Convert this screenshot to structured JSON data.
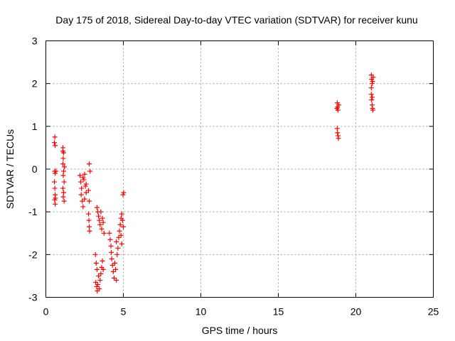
{
  "chart_data": {
    "type": "scatter",
    "title": "Day 175 of 2018, Sidereal Day-to-day VTEC variation (SDTVAR) for receiver kunu",
    "xlabel": "GPS time / hours",
    "ylabel": "SDTVAR / TECUs",
    "xlim": [
      0,
      25
    ],
    "ylim": [
      -3,
      3
    ],
    "xticks": [
      "0",
      "5",
      "10",
      "15",
      "20",
      "25"
    ],
    "yticks": [
      "-3",
      "-2",
      "-1",
      "0",
      "1",
      "2",
      "3"
    ],
    "grid": true,
    "marker": "+",
    "color": "#ff0000",
    "series": [
      {
        "name": "SDTVAR",
        "points": [
          [
            0.55,
            0.62
          ],
          [
            0.58,
            0.75
          ],
          [
            0.6,
            0.55
          ],
          [
            0.57,
            -0.05
          ],
          [
            0.6,
            -0.1
          ],
          [
            0.55,
            -0.3
          ],
          [
            0.58,
            -0.45
          ],
          [
            0.6,
            -0.6
          ],
          [
            0.57,
            -0.72
          ],
          [
            0.6,
            -0.82
          ],
          [
            0.62,
            -0.68
          ],
          [
            0.65,
            -0.05
          ],
          [
            1.1,
            0.5
          ],
          [
            1.15,
            0.38
          ],
          [
            1.12,
            0.25
          ],
          [
            1.1,
            0.12
          ],
          [
            1.15,
            -0.05
          ],
          [
            1.12,
            -0.15
          ],
          [
            1.18,
            -0.3
          ],
          [
            1.1,
            -0.45
          ],
          [
            1.15,
            -0.55
          ],
          [
            1.12,
            -0.65
          ],
          [
            1.18,
            -0.75
          ],
          [
            1.2,
            0.05
          ],
          [
            1.1,
            0.42
          ],
          [
            2.2,
            -0.15
          ],
          [
            2.25,
            -0.3
          ],
          [
            2.3,
            -0.45
          ],
          [
            2.28,
            -0.6
          ],
          [
            2.35,
            -0.75
          ],
          [
            2.4,
            -0.88
          ],
          [
            2.45,
            -0.25
          ],
          [
            2.5,
            -0.12
          ],
          [
            2.55,
            -0.4
          ],
          [
            2.6,
            -0.55
          ],
          [
            2.5,
            -0.7
          ],
          [
            2.4,
            -0.2
          ],
          [
            2.6,
            -0.35
          ],
          [
            2.75,
            -0.5
          ],
          [
            2.8,
            0.12
          ],
          [
            2.85,
            -0.05
          ],
          [
            2.8,
            -0.75
          ],
          [
            2.75,
            -1.05
          ],
          [
            2.78,
            -1.2
          ],
          [
            2.8,
            -1.35
          ],
          [
            2.82,
            -1.45
          ],
          [
            3.2,
            -2.0
          ],
          [
            3.25,
            -2.2
          ],
          [
            3.3,
            -2.35
          ],
          [
            3.22,
            -2.65
          ],
          [
            3.28,
            -2.75
          ],
          [
            3.32,
            -2.85
          ],
          [
            3.35,
            -2.7
          ],
          [
            3.4,
            -2.5
          ],
          [
            3.45,
            -2.8
          ],
          [
            3.5,
            -2.6
          ],
          [
            3.55,
            -2.45
          ],
          [
            3.6,
            -2.3
          ],
          [
            3.65,
            -2.15
          ],
          [
            3.7,
            -2.35
          ],
          [
            3.3,
            -0.9
          ],
          [
            3.35,
            -1.0
          ],
          [
            3.4,
            -1.1
          ],
          [
            3.45,
            -1.2
          ],
          [
            3.5,
            -1.3
          ],
          [
            3.55,
            -1.0
          ],
          [
            3.6,
            -1.4
          ],
          [
            3.65,
            -1.15
          ],
          [
            3.7,
            -1.25
          ],
          [
            3.75,
            -1.5
          ],
          [
            4.1,
            -1.5
          ],
          [
            4.15,
            -1.65
          ],
          [
            4.2,
            -1.8
          ],
          [
            4.22,
            -1.95
          ],
          [
            4.25,
            -2.1
          ],
          [
            4.3,
            -2.25
          ],
          [
            4.35,
            -2.4
          ],
          [
            4.4,
            -2.55
          ],
          [
            4.45,
            -2.2
          ],
          [
            4.5,
            -2.35
          ],
          [
            4.55,
            -2.6
          ],
          [
            4.6,
            -2.0
          ],
          [
            4.65,
            -1.85
          ],
          [
            4.55,
            -1.7
          ],
          [
            4.7,
            -1.6
          ],
          [
            4.75,
            -1.45
          ],
          [
            4.8,
            -1.3
          ],
          [
            4.85,
            -1.15
          ],
          [
            4.9,
            -1.05
          ],
          [
            4.95,
            -1.2
          ],
          [
            5.0,
            -1.35
          ],
          [
            4.98,
            -0.6
          ],
          [
            5.02,
            -0.55
          ],
          [
            4.9,
            -1.75
          ],
          [
            4.85,
            -1.55
          ]
        ]
      },
      {
        "name": "SDTVAR",
        "points": [
          [
            18.8,
            1.55
          ],
          [
            18.82,
            1.45
          ],
          [
            18.85,
            1.38
          ],
          [
            18.9,
            1.5
          ],
          [
            18.78,
            1.42
          ],
          [
            18.8,
            0.95
          ],
          [
            18.82,
            0.85
          ],
          [
            18.85,
            0.78
          ],
          [
            18.88,
            0.72
          ],
          [
            21.0,
            2.2
          ],
          [
            21.02,
            2.1
          ],
          [
            21.05,
            2.0
          ],
          [
            21.0,
            1.9
          ],
          [
            21.08,
            2.05
          ],
          [
            21.0,
            1.75
          ],
          [
            21.02,
            1.62
          ],
          [
            21.05,
            1.5
          ],
          [
            21.08,
            1.42
          ],
          [
            21.1,
            1.38
          ],
          [
            21.06,
            1.68
          ],
          [
            21.12,
            2.15
          ]
        ]
      }
    ]
  }
}
